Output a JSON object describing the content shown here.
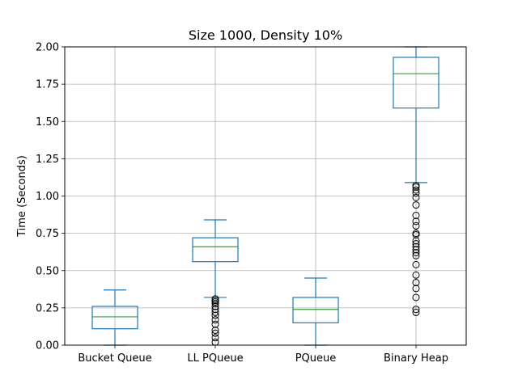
{
  "chart_data": {
    "type": "box",
    "title": "Size 1000, Density 10%",
    "xlabel": "",
    "ylabel": "Time (Seconds)",
    "ylim": [
      0,
      2
    ],
    "yticks": [
      "0.00",
      "0.25",
      "0.50",
      "0.75",
      "1.00",
      "1.25",
      "1.50",
      "1.75",
      "2.00"
    ],
    "grid": true,
    "categories": [
      "Bucket Queue",
      "LL PQueue",
      "PQueue",
      "Binary Heap"
    ],
    "boxes": [
      {
        "name": "Bucket Queue",
        "whisker_low": 0.0,
        "q1": 0.11,
        "median": 0.19,
        "q3": 0.26,
        "whisker_high": 0.37,
        "outliers": []
      },
      {
        "name": "LL PQueue",
        "whisker_low": 0.32,
        "q1": 0.56,
        "median": 0.66,
        "q3": 0.72,
        "whisker_high": 0.84,
        "outliers": [
          0.02,
          0.05,
          0.08,
          0.1,
          0.14,
          0.17,
          0.2,
          0.22,
          0.24,
          0.26,
          0.28,
          0.29,
          0.3,
          0.31
        ]
      },
      {
        "name": "PQueue",
        "whisker_low": 0.0,
        "q1": 0.15,
        "median": 0.24,
        "q3": 0.32,
        "whisker_high": 0.45,
        "outliers": []
      },
      {
        "name": "Binary Heap",
        "whisker_low": 1.09,
        "q1": 1.59,
        "median": 1.82,
        "q3": 1.93,
        "whisker_high": 2.0,
        "outliers": [
          0.22,
          0.24,
          0.32,
          0.38,
          0.42,
          0.47,
          0.54,
          0.6,
          0.62,
          0.64,
          0.66,
          0.68,
          0.7,
          0.74,
          0.75,
          0.8,
          0.83,
          0.87,
          0.94,
          0.99,
          1.02,
          1.04,
          1.06,
          1.07
        ]
      }
    ]
  },
  "colors": {
    "box": "#1f77b4",
    "median": "#2ca02c",
    "grid": "#b0b0b0"
  }
}
